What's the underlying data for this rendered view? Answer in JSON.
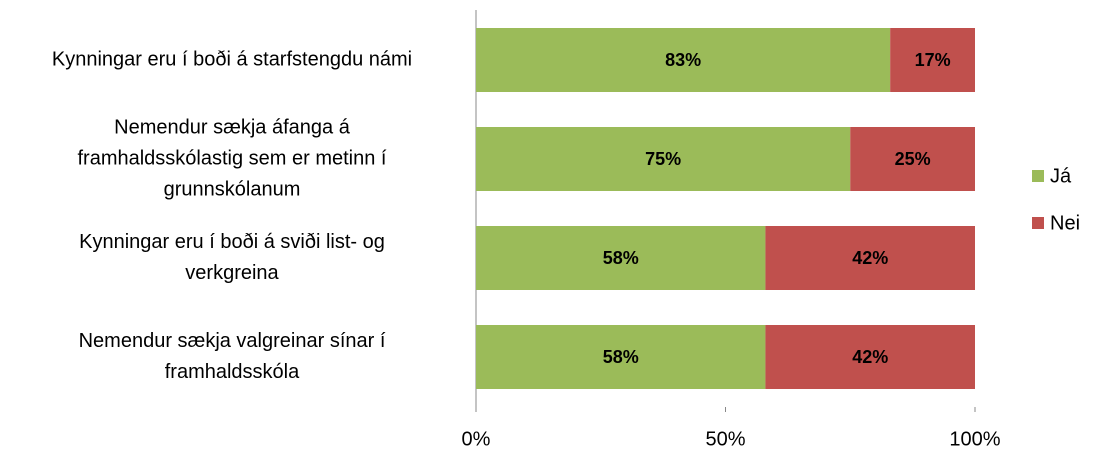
{
  "chart_data": {
    "type": "stacked_barh",
    "categories": [
      "Kynningar eru í boði á starfstengdu námi",
      "Nemendur sækja áfanga á\nframhaldsskólastig sem er metinn í\ngrunnskólanum",
      "Kynningar eru í boði á sviði list- og\nverkgreina",
      "Nemendur sækja valgreinar sínar í\nframhaldsskóla"
    ],
    "series": [
      {
        "name": "Já",
        "color": "#9bbb59",
        "values": [
          83,
          75,
          58,
          58
        ],
        "value_labels": [
          "83%",
          "75%",
          "58%",
          "58%"
        ]
      },
      {
        "name": "Nei",
        "color": "#c0504d",
        "values": [
          17,
          25,
          42,
          42
        ],
        "value_labels": [
          "17%",
          "25%",
          "42%",
          "42%"
        ]
      }
    ],
    "xlim": [
      0,
      100
    ],
    "xticks": [
      {
        "value": 0,
        "label": "0%"
      },
      {
        "value": 50,
        "label": "50%"
      },
      {
        "value": 100,
        "label": "100%"
      }
    ],
    "legend": "right"
  }
}
